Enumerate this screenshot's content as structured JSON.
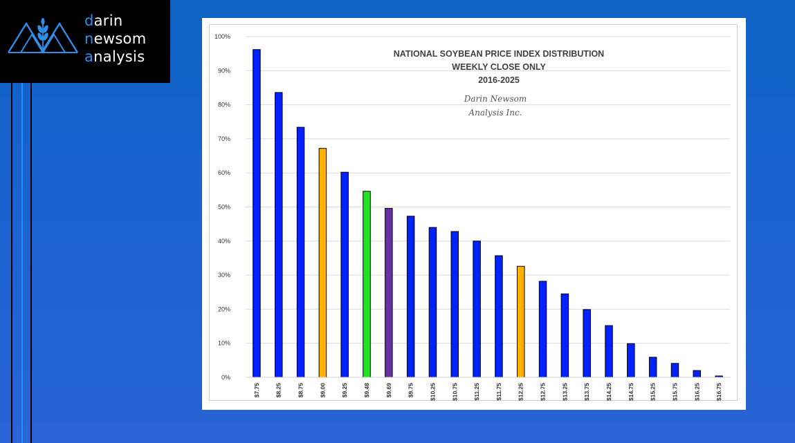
{
  "brand": {
    "line1_accent": "d",
    "line1_rest": "arin",
    "line2_accent": "n",
    "line2_rest": "ewsom",
    "line3_accent": "a",
    "line3_rest": "nalysis",
    "icon": "mountains-wheat-icon"
  },
  "colors": {
    "background": "#1a62cf",
    "blue_bar": "#0022ff",
    "orange_bar": "#ffb300",
    "green_bar": "#22e322",
    "purple_bar": "#6a30a8",
    "logo_accent": "#2f8ee8"
  },
  "chart_data": {
    "type": "bar",
    "title_lines": [
      "NATIONAL SOYBEAN PRICE INDEX DISTRIBUTION",
      "WEEKLY CLOSE ONLY",
      "2016-2025"
    ],
    "watermark_lines": [
      "Darin Newsom",
      "Analysis Inc."
    ],
    "xlabel": "",
    "ylabel": "",
    "ylim": [
      0,
      100
    ],
    "y_ticks": [
      "0%",
      "10%",
      "20%",
      "30%",
      "40%",
      "50%",
      "60%",
      "70%",
      "80%",
      "90%",
      "100%"
    ],
    "grid": true,
    "categories": [
      "$7.75",
      "$8.25",
      "$8.75",
      "$9.00",
      "$9.25",
      "$9.48",
      "$9.69",
      "$9.75",
      "$10.25",
      "$10.75",
      "$11.25",
      "$11.75",
      "$12.25",
      "$12.75",
      "$13.25",
      "$13.75",
      "$14.25",
      "$14.75",
      "$15.25",
      "$15.75",
      "$16.25",
      "$16.75"
    ],
    "values": [
      96.2,
      83.6,
      73.4,
      67.2,
      60.2,
      54.6,
      49.6,
      47.3,
      44.0,
      42.8,
      40.0,
      35.7,
      32.6,
      28.2,
      24.5,
      19.9,
      15.2,
      9.9,
      5.9,
      4.1,
      2.0,
      0.4
    ],
    "bar_colors": [
      "blue",
      "blue",
      "blue",
      "orange",
      "blue",
      "green",
      "purple",
      "blue",
      "blue",
      "blue",
      "blue",
      "blue",
      "orange",
      "blue",
      "blue",
      "blue",
      "blue",
      "blue",
      "blue",
      "blue",
      "blue",
      "blue"
    ]
  }
}
